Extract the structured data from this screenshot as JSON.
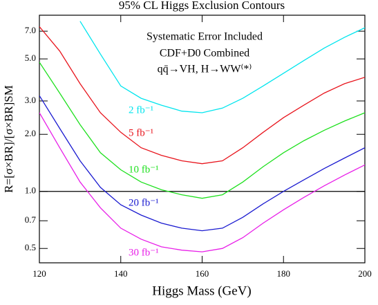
{
  "chart_data": {
    "type": "line",
    "title": "95% CL Higgs Exclusion Contours",
    "xlabel": "Higgs Mass (GeV)",
    "ylabel": "R=[σ×BR]/[σ×BR]SM",
    "annotations": [
      "Systematic Error Included",
      "CDF+D0 Combined",
      "qq̄→VH, H→WW⁽*⁾"
    ],
    "x": [
      120,
      125,
      130,
      135,
      140,
      145,
      150,
      155,
      160,
      165,
      170,
      175,
      180,
      185,
      190,
      195,
      200
    ],
    "series": [
      {
        "name": "2 fb⁻¹",
        "color": "#00e5ee",
        "values": [
          null,
          null,
          7.9,
          5.3,
          3.6,
          3.1,
          2.85,
          2.65,
          2.6,
          2.75,
          3.1,
          3.6,
          4.2,
          4.9,
          5.7,
          6.5,
          7.3
        ]
      },
      {
        "name": "5 fb⁻¹",
        "color": "#e8141c",
        "values": [
          7.4,
          5.5,
          3.7,
          2.6,
          2.05,
          1.7,
          1.55,
          1.45,
          1.4,
          1.45,
          1.7,
          2.05,
          2.45,
          2.85,
          3.3,
          3.7,
          4.0
        ]
      },
      {
        "name": "10 fb⁻¹",
        "color": "#1ee01e",
        "values": [
          4.8,
          3.3,
          2.25,
          1.6,
          1.3,
          1.12,
          1.02,
          0.96,
          0.92,
          0.96,
          1.12,
          1.35,
          1.6,
          1.85,
          2.1,
          2.35,
          2.6
        ]
      },
      {
        "name": "20 fb⁻¹",
        "color": "#1a1ad0",
        "values": [
          3.2,
          2.15,
          1.45,
          1.05,
          0.85,
          0.75,
          0.68,
          0.64,
          0.62,
          0.64,
          0.73,
          0.86,
          1.0,
          1.15,
          1.32,
          1.5,
          1.7
        ]
      },
      {
        "name": "30 fb⁻¹",
        "color": "#e81ee8",
        "values": [
          2.6,
          1.7,
          1.12,
          0.82,
          0.64,
          0.56,
          0.51,
          0.49,
          0.48,
          0.5,
          0.57,
          0.68,
          0.8,
          0.93,
          1.07,
          1.22,
          1.38
        ]
      }
    ],
    "xlim": [
      120,
      200
    ],
    "xticks": [
      120,
      140,
      160,
      180,
      200
    ],
    "ylim": [
      0.42,
      8.5
    ],
    "log_y": true,
    "yticks": [
      {
        "value": 0.5,
        "label": "0.5"
      },
      {
        "value": 0.7,
        "label": "0.7"
      },
      {
        "value": 1,
        "label": "1.0"
      },
      {
        "value": 2,
        "label": "2.0"
      },
      {
        "value": 3,
        "label": "3.0"
      },
      {
        "value": 5,
        "label": "5.0"
      },
      {
        "value": 7,
        "label": "7.0"
      }
    ],
    "reference_line": 1
  }
}
